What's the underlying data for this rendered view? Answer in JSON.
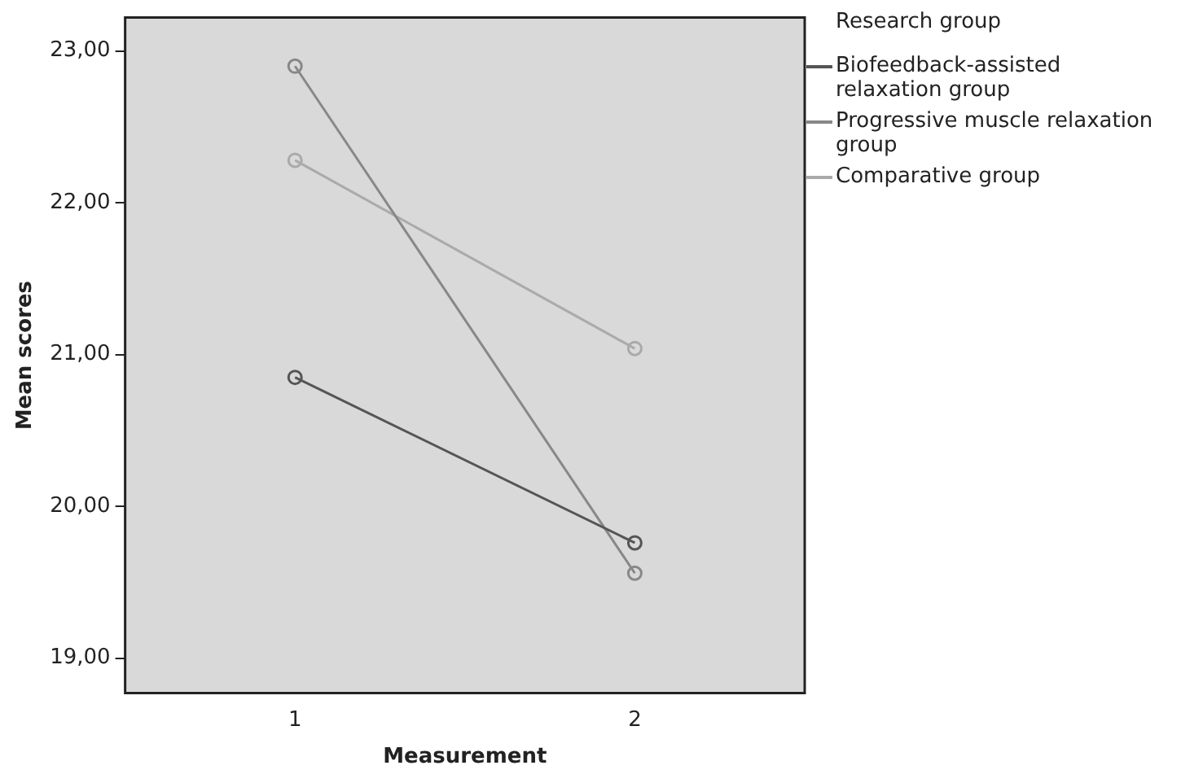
{
  "chart_data": {
    "type": "line",
    "xlabel": "Measurement",
    "ylabel": "Mean scores",
    "legend_title": "Research group",
    "legend": "top right",
    "marker": "circle",
    "line_style": "solid",
    "grid": false,
    "categories": [
      "1",
      "2"
    ],
    "series": [
      {
        "name": "Biofeedback-assisted relaxation group",
        "color": "#555555",
        "values": [
          20.85,
          19.76
        ]
      },
      {
        "name": "Progressive muscle relaxation group",
        "color": "#888888",
        "values": [
          22.9,
          19.56
        ]
      },
      {
        "name": "Comparative group",
        "color": "#aaaaaa",
        "values": [
          22.28,
          21.04
        ]
      }
    ],
    "ylim": [
      18.77,
      23.22
    ],
    "yticks": [
      {
        "value": 19,
        "label": "19,00"
      },
      {
        "value": 20,
        "label": "20,00"
      },
      {
        "value": 21,
        "label": "21,00"
      },
      {
        "value": 22,
        "label": "22,00"
      },
      {
        "value": 23,
        "label": "23,00"
      }
    ]
  }
}
